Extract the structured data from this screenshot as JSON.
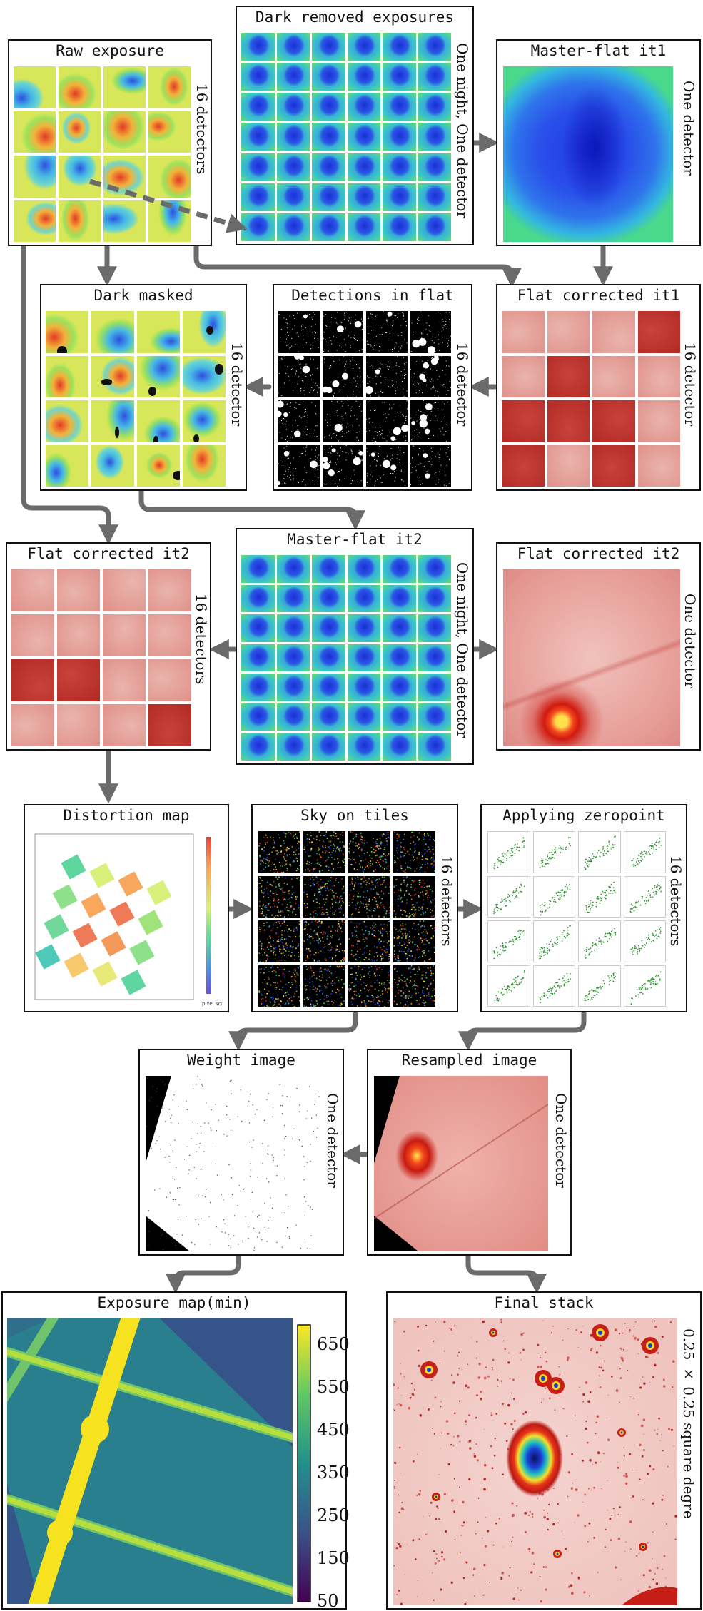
{
  "nodes": {
    "raw": {
      "title": "Raw exposure",
      "side": "16 detectors"
    },
    "dark_removed": {
      "title": "Dark removed exposures",
      "side": "One night, One detector"
    },
    "master1": {
      "title": "Master-flat it1",
      "side": "One detector"
    },
    "dark_masked": {
      "title": "Dark masked",
      "side": "16 detector"
    },
    "detections": {
      "title": "Detections in flat",
      "side": "16 detector"
    },
    "flat1": {
      "title": "Flat corrected it1",
      "side": "16 detector"
    },
    "flat2a": {
      "title": "Flat corrected it2",
      "side": "16 detectors"
    },
    "master2": {
      "title": "Master-flat it2",
      "side": "One night, One detector"
    },
    "flat2b": {
      "title": "Flat corrected it2",
      "side": "One detector"
    },
    "distortion": {
      "title": "Distortion map",
      "cbar_label": "pixel scale"
    },
    "sky": {
      "title": "Sky on tiles",
      "side": "16 detectors"
    },
    "zeropoint": {
      "title": "Applying zeropoint",
      "side": "16 detectors"
    },
    "weight": {
      "title": "Weight image",
      "side": "One detector"
    },
    "resampled": {
      "title": "Resampled image",
      "side": "One detector"
    },
    "expmap": {
      "title": "Exposure map(min)"
    },
    "final": {
      "title": "Final stack",
      "side": "0.25 × 0.25 square degre"
    }
  },
  "colorbar": {
    "ticks": [
      "650",
      "550",
      "450",
      "350",
      "250",
      "150",
      "50"
    ]
  },
  "colors": {
    "arrow": "#6b6b6b",
    "frame": "#111111",
    "flat_red": "#c23a36",
    "heat_blue": "#2a52e0",
    "viridis_yellow": "#f7e21f"
  }
}
